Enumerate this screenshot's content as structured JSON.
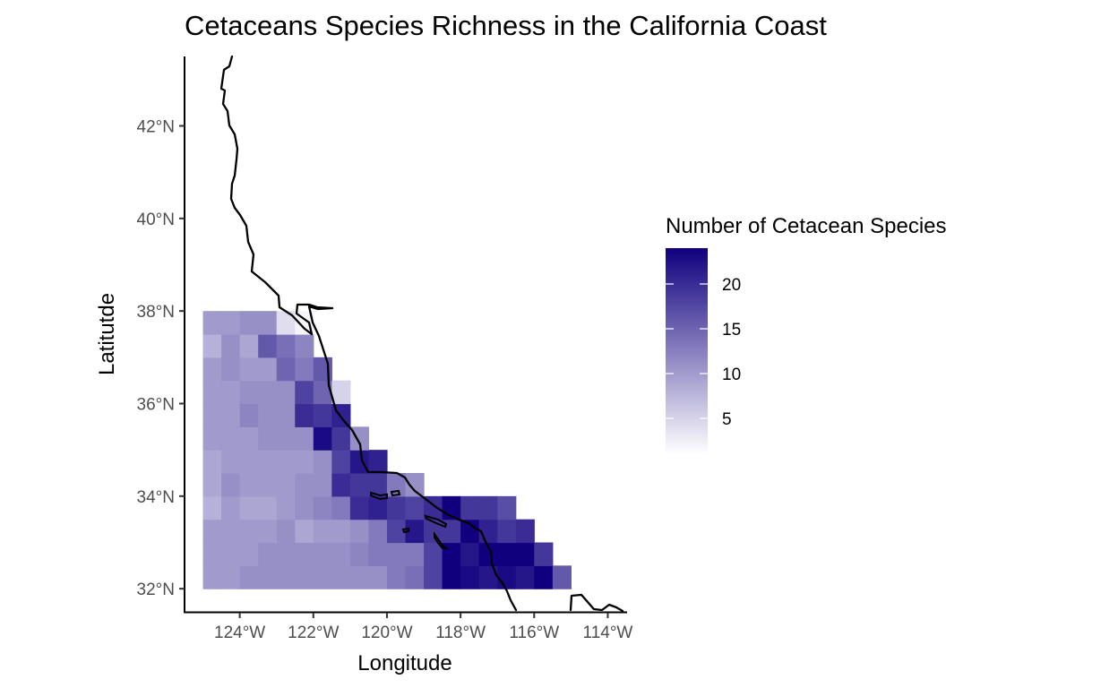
{
  "chart_data": {
    "type": "heatmap",
    "title": "Cetaceans Species Richness in the California Coast",
    "xlabel": "Longitude",
    "ylabel": "Latitutde",
    "xlim": [
      -125.5,
      -113.5
    ],
    "ylim": [
      31.5,
      43.5
    ],
    "x_ticks": [
      {
        "value": -124,
        "label": "124°W"
      },
      {
        "value": -122,
        "label": "122°W"
      },
      {
        "value": -120,
        "label": "120°W"
      },
      {
        "value": -118,
        "label": "118°W"
      },
      {
        "value": -116,
        "label": "116°W"
      },
      {
        "value": -114,
        "label": "114°W"
      }
    ],
    "y_ticks": [
      {
        "value": 32,
        "label": "32°N"
      },
      {
        "value": 34,
        "label": "34°N"
      },
      {
        "value": 36,
        "label": "36°N"
      },
      {
        "value": 38,
        "label": "38°N"
      },
      {
        "value": 40,
        "label": "40°N"
      },
      {
        "value": 42,
        "label": "42°N"
      }
    ],
    "grid": false,
    "legend": {
      "title": "Number of Cetacean Species",
      "position": "right",
      "min": 1,
      "max": 24,
      "ticks": [
        5,
        10,
        15,
        20
      ],
      "color_low": "#ffffff",
      "color_high": "#10007e"
    },
    "cell_size_deg": 0.5,
    "grid_west_edge": -125,
    "grid_south_edge": 32,
    "cell_rows_south_to_north": [
      [
        10,
        10,
        11,
        11,
        11,
        11,
        11,
        11,
        11,
        11,
        13,
        14,
        18,
        24,
        23,
        22,
        23,
        22,
        24,
        16
      ],
      [
        10,
        10,
        10,
        11,
        11,
        11,
        11,
        11,
        12,
        13,
        13,
        13,
        18,
        24,
        22,
        24,
        24,
        24,
        19
      ],
      [
        10,
        10,
        10,
        10,
        11,
        9,
        10,
        10,
        11,
        13,
        18,
        22,
        19,
        19,
        24,
        21,
        19,
        20
      ],
      [
        8,
        10,
        9,
        9,
        10,
        11,
        12,
        13,
        20,
        21,
        19,
        18,
        20,
        24,
        19,
        19,
        17
      ],
      [
        9,
        11,
        10,
        10,
        10,
        11,
        11,
        20,
        19,
        19,
        13,
        11
      ],
      [
        9,
        10,
        10,
        10,
        10,
        10,
        11,
        18,
        22,
        21
      ],
      [
        10,
        10,
        10,
        11,
        11,
        11,
        23,
        19,
        11
      ],
      [
        10,
        10,
        12,
        11,
        11,
        20,
        19,
        21
      ],
      [
        10,
        10,
        11,
        11,
        11,
        18,
        15,
        5
      ],
      [
        10,
        11,
        10,
        10,
        15,
        13,
        16
      ],
      [
        8,
        11,
        9,
        16,
        14,
        12
      ],
      [
        10,
        10,
        11,
        11,
        4,
        2
      ]
    ]
  }
}
